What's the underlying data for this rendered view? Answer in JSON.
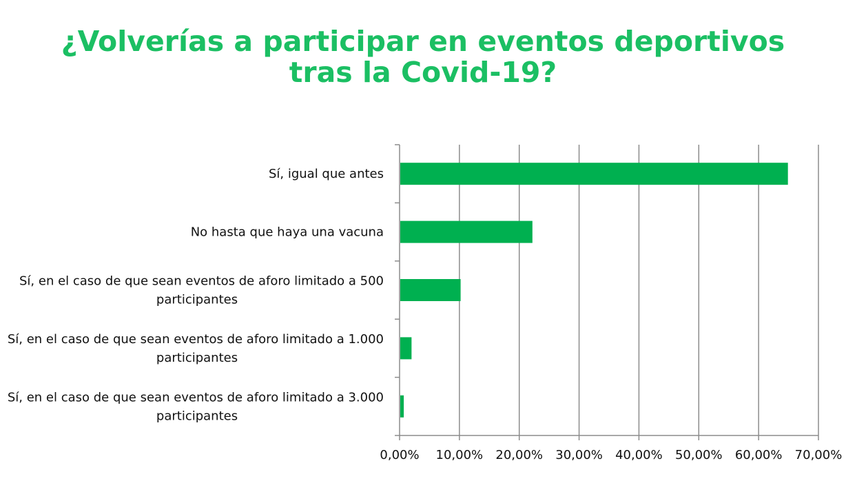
{
  "chart_data": {
    "type": "bar",
    "orientation": "horizontal",
    "title_lines": [
      "¿Volverías a participar en eventos deportivos",
      "tras la Covid-19?"
    ],
    "categories": [
      [
        "Sí, igual que antes"
      ],
      [
        "No hasta que haya una vacuna"
      ],
      [
        "Sí, en el caso de que sean eventos de aforo limitado a 500",
        "participantes"
      ],
      [
        "Sí, en el caso de que sean eventos de aforo limitado a 1.000",
        "participantes"
      ],
      [
        "Sí, en el caso de que sean eventos de aforo limitado a 3.000",
        "participantes"
      ]
    ],
    "values": [
      64.9,
      22.2,
      10.2,
      2.0,
      0.7
    ],
    "xlim": [
      0,
      70
    ],
    "xticks": [
      0,
      10,
      20,
      30,
      40,
      50,
      60,
      70
    ],
    "xtick_labels": [
      "0,00%",
      "10,00%",
      "20,00%",
      "30,00%",
      "40,00%",
      "50,00%",
      "60,00%",
      "70,00%"
    ],
    "grid": true,
    "legend": "none",
    "bar_color": "#00b050",
    "title_color": "#1bbf63",
    "grid_color": "#8c8c8c"
  }
}
